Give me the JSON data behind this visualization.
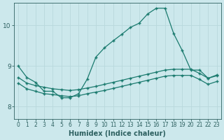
{
  "xlabel": "Humidex (Indice chaleur)",
  "bg_color": "#cce8ec",
  "line_color": "#1a7a6e",
  "grid_color": "#b8d8dc",
  "xlim": [
    -0.5,
    23.5
  ],
  "ylim": [
    7.7,
    10.55
  ],
  "yticks": [
    8,
    9,
    10
  ],
  "xticks": [
    0,
    1,
    2,
    3,
    4,
    5,
    6,
    7,
    8,
    9,
    10,
    11,
    12,
    13,
    14,
    15,
    16,
    17,
    18,
    19,
    20,
    21,
    22,
    23
  ],
  "line1_x": [
    0,
    1,
    2,
    3,
    4,
    5,
    6,
    7,
    8,
    9,
    10,
    11,
    12,
    13,
    14,
    15,
    16,
    17,
    18,
    19,
    20,
    21,
    22,
    23
  ],
  "line1_y": [
    9.0,
    8.72,
    8.6,
    8.38,
    8.38,
    8.22,
    8.22,
    8.32,
    8.68,
    9.22,
    9.45,
    9.62,
    9.78,
    9.95,
    10.05,
    10.28,
    10.42,
    10.42,
    9.8,
    9.38,
    8.9,
    8.9,
    8.7,
    8.78
  ],
  "line2_x": [
    0,
    1,
    2,
    3,
    4,
    5,
    6,
    7,
    8,
    9,
    10,
    11,
    12,
    13,
    14,
    15,
    16,
    17,
    18,
    19,
    20,
    21,
    22,
    23
  ],
  "line2_y": [
    8.72,
    8.58,
    8.52,
    8.48,
    8.44,
    8.42,
    8.4,
    8.42,
    8.46,
    8.5,
    8.55,
    8.6,
    8.65,
    8.7,
    8.75,
    8.8,
    8.85,
    8.9,
    8.92,
    8.92,
    8.92,
    8.82,
    8.7,
    8.76
  ],
  "line3_x": [
    0,
    1,
    2,
    3,
    4,
    5,
    6,
    7,
    8,
    9,
    10,
    11,
    12,
    13,
    14,
    15,
    16,
    17,
    18,
    19,
    20,
    21,
    22,
    23
  ],
  "line3_y": [
    8.58,
    8.44,
    8.38,
    8.32,
    8.3,
    8.27,
    8.25,
    8.27,
    8.32,
    8.36,
    8.4,
    8.45,
    8.5,
    8.55,
    8.6,
    8.65,
    8.7,
    8.75,
    8.77,
    8.77,
    8.77,
    8.67,
    8.55,
    8.62
  ],
  "marker": "+",
  "markersize": 3,
  "linewidth": 0.9,
  "font_color": "#2d6060",
  "xlabel_fontsize": 7,
  "tick_fontsize": 6.5
}
